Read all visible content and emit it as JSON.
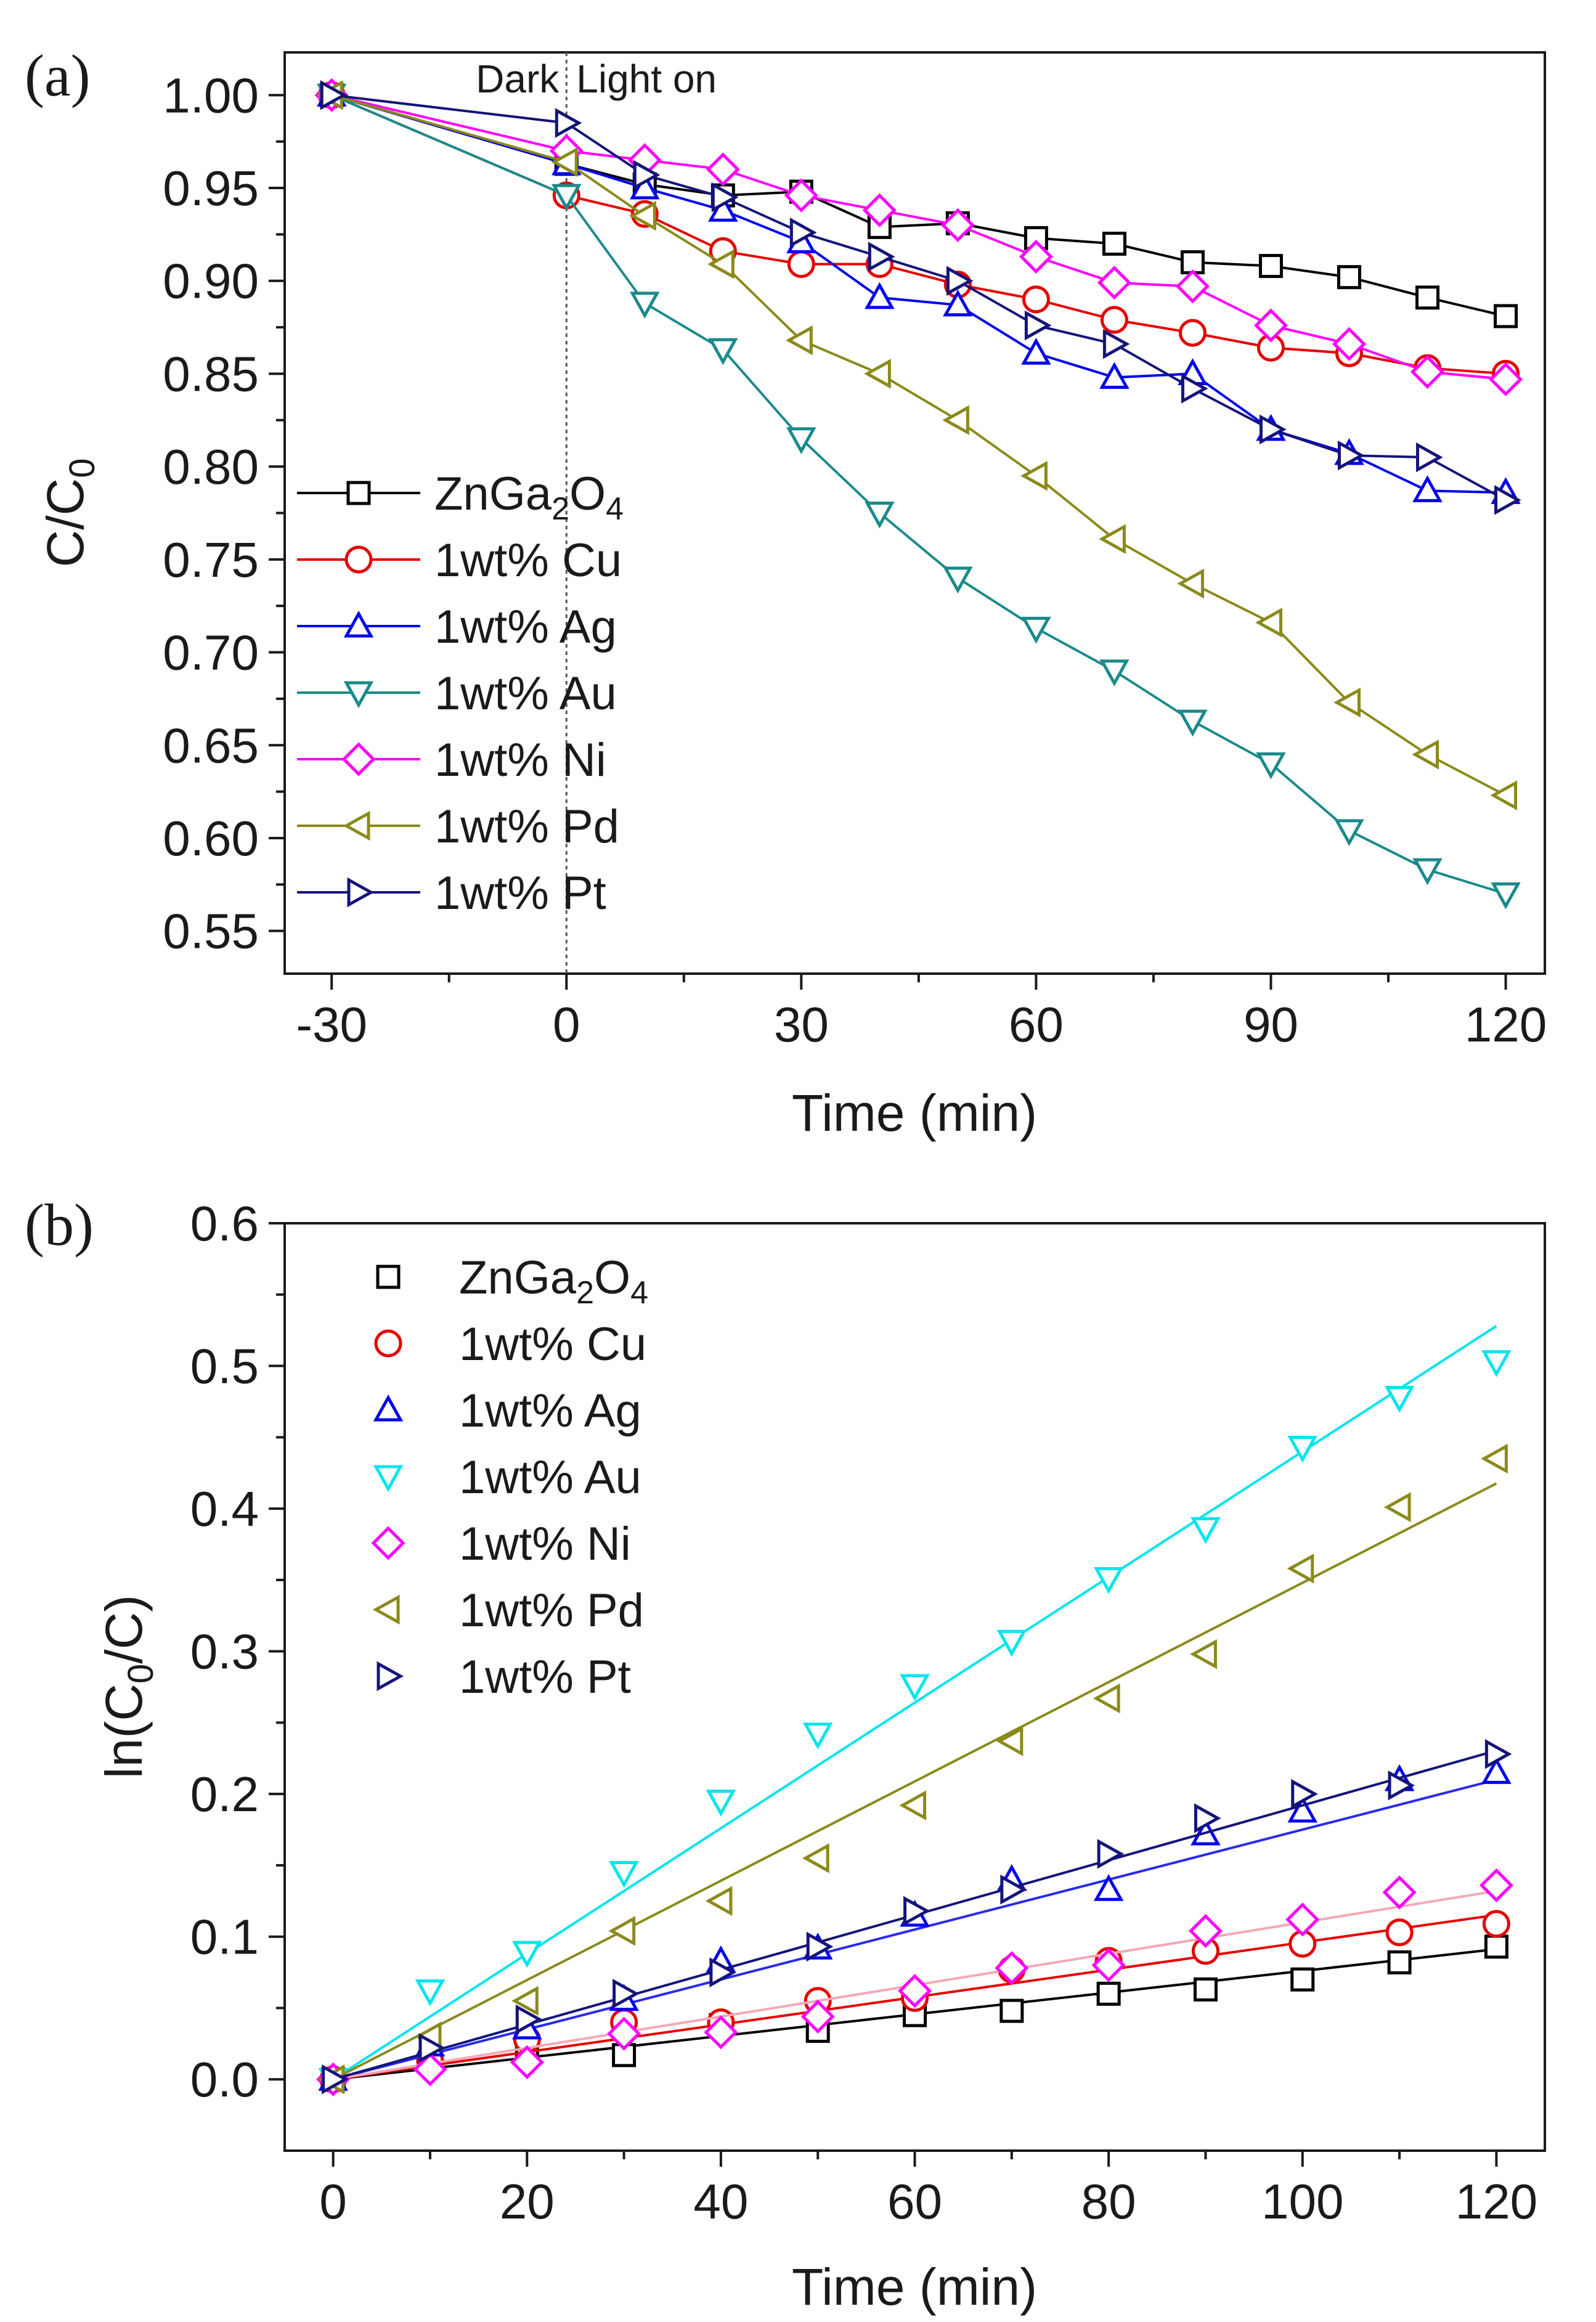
{
  "chart_data": [
    {
      "type": "line",
      "panel_label": "(a)",
      "xlabel": "Time (min)",
      "ylabel": "C/C",
      "ylabel_sub": "0",
      "x_ticks": [
        "-30",
        "0",
        "30",
        "60",
        "90",
        "120"
      ],
      "x_tick_values": [
        -30,
        0,
        30,
        60,
        90,
        120
      ],
      "y_ticks": [
        "0.55",
        "0.60",
        "0.65",
        "0.70",
        "0.75",
        "0.80",
        "0.85",
        "0.90",
        "0.95",
        "1.00"
      ],
      "y_tick_values": [
        0.55,
        0.6,
        0.65,
        0.7,
        0.75,
        0.8,
        0.85,
        0.9,
        0.95,
        1.0
      ],
      "xlim": [
        -36,
        125
      ],
      "ylim": [
        0.527,
        1.023
      ],
      "annotations": {
        "dark": "Dark",
        "light": "Light on"
      },
      "legend_position": "center-left",
      "x": [
        -30,
        0,
        10,
        20,
        30,
        40,
        50,
        60,
        70,
        80,
        90,
        100,
        110,
        120
      ],
      "series": [
        {
          "name": "ZnGa",
          "sub1": "2",
          "mid": "O",
          "sub2": "4",
          "color": "#000000",
          "marker": "square",
          "values": [
            1.0,
            0.963,
            0.952,
            0.946,
            0.948,
            0.929,
            0.931,
            0.923,
            0.92,
            0.91,
            0.908,
            0.902,
            0.891,
            0.881
          ]
        },
        {
          "name": "1wt% Cu",
          "color": "#e60000",
          "marker": "circle",
          "values": [
            1.0,
            0.946,
            0.936,
            0.916,
            0.909,
            0.909,
            0.898,
            0.89,
            0.879,
            0.872,
            0.864,
            0.861,
            0.853,
            0.85
          ]
        },
        {
          "name": "1wt% Ag",
          "color": "#0000ee",
          "marker": "triangle-up",
          "values": [
            1.0,
            0.963,
            0.95,
            0.938,
            0.921,
            0.891,
            0.887,
            0.861,
            0.848,
            0.85,
            0.82,
            0.807,
            0.787,
            0.786
          ]
        },
        {
          "name": "1wt% Au",
          "color": "#1a8a8a",
          "marker": "triangle-down",
          "values": [
            1.0,
            0.946,
            0.888,
            0.863,
            0.815,
            0.775,
            0.74,
            0.713,
            0.69,
            0.663,
            0.64,
            0.604,
            0.583,
            0.57
          ]
        },
        {
          "name": "1wt% Ni",
          "color": "#ff00ff",
          "marker": "diamond",
          "values": [
            1.0,
            0.97,
            0.965,
            0.96,
            0.946,
            0.938,
            0.93,
            0.913,
            0.899,
            0.897,
            0.876,
            0.866,
            0.851,
            0.847
          ]
        },
        {
          "name": "1wt% Pd",
          "color": "#8a8a1a",
          "marker": "triangle-left",
          "values": [
            1.0,
            0.964,
            0.935,
            0.909,
            0.868,
            0.85,
            0.825,
            0.795,
            0.761,
            0.737,
            0.716,
            0.673,
            0.645,
            0.623
          ]
        },
        {
          "name": "1wt% Pt",
          "color": "#14147a",
          "marker": "triangle-right",
          "values": [
            1.0,
            0.985,
            0.957,
            0.945,
            0.926,
            0.913,
            0.9,
            0.876,
            0.866,
            0.842,
            0.82,
            0.806,
            0.805,
            0.782
          ]
        }
      ]
    },
    {
      "type": "scatter",
      "panel_label": "(b)",
      "xlabel": "Time (min)",
      "ylabel_pre": "ln(C",
      "ylabel_sub": "0",
      "ylabel_post": "/C)",
      "x_ticks": [
        "0",
        "20",
        "40",
        "60",
        "80",
        "100",
        "120"
      ],
      "x_tick_values": [
        0,
        20,
        40,
        60,
        80,
        100,
        120
      ],
      "y_ticks": [
        "0.0",
        "0.1",
        "0.2",
        "0.3",
        "0.4",
        "0.5",
        "0.6"
      ],
      "y_tick_values": [
        0.0,
        0.1,
        0.2,
        0.3,
        0.4,
        0.5,
        0.6
      ],
      "xlim": [
        -5,
        125
      ],
      "ylim": [
        -0.05,
        0.6
      ],
      "legend_position": "top-left",
      "x": [
        0,
        10,
        20,
        30,
        40,
        50,
        60,
        70,
        80,
        90,
        100,
        110,
        120
      ],
      "series": [
        {
          "name": "ZnGa",
          "sub1": "2",
          "mid": "O",
          "sub2": "4",
          "color": "#000000",
          "fit_color": "#000000",
          "marker": "square",
          "slope": 0.00076,
          "values": [
            0.0,
            0.012,
            0.02,
            0.017,
            0.038,
            0.034,
            0.045,
            0.048,
            0.06,
            0.063,
            0.07,
            0.082,
            0.093
          ]
        },
        {
          "name": "1wt% Cu",
          "color": "#e60000",
          "fit_color": "#e60000",
          "marker": "circle",
          "slope": 0.00096,
          "values": [
            0.0,
            0.013,
            0.028,
            0.04,
            0.04,
            0.055,
            0.057,
            0.077,
            0.083,
            0.09,
            0.095,
            0.103,
            0.109
          ]
        },
        {
          "name": "1wt% Ag",
          "color": "#0000ee",
          "fit_color": "#2a2aee",
          "marker": "triangle-up",
          "slope": 0.00175,
          "values": [
            0.0,
            0.024,
            0.036,
            0.056,
            0.083,
            0.092,
            0.115,
            0.14,
            0.133,
            0.172,
            0.188,
            0.21,
            0.215
          ]
        },
        {
          "name": "1wt% Au",
          "color": "#00e5ee",
          "fit_color": "#00e5ee",
          "marker": "triangle-down",
          "slope": 0.0044,
          "values": [
            0.0,
            0.062,
            0.089,
            0.145,
            0.195,
            0.242,
            0.276,
            0.307,
            0.351,
            0.386,
            0.443,
            0.478,
            0.503
          ]
        },
        {
          "name": "1wt% Ni",
          "color": "#ff00ff",
          "fit_color": "#f4a8b8",
          "marker": "diamond",
          "slope": 0.0011,
          "values": [
            0.0,
            0.007,
            0.012,
            0.032,
            0.033,
            0.044,
            0.062,
            0.078,
            0.08,
            0.104,
            0.112,
            0.131,
            0.136
          ]
        },
        {
          "name": "1wt% Pd",
          "color": "#8a8a1a",
          "fit_color": "#8a8a1a",
          "marker": "triangle-left",
          "slope": 0.00348,
          "values": [
            0.0,
            0.03,
            0.055,
            0.104,
            0.125,
            0.155,
            0.192,
            0.237,
            0.267,
            0.298,
            0.358,
            0.401,
            0.435
          ]
        },
        {
          "name": "1wt% Pt",
          "color": "#14147a",
          "fit_color": "#14147a",
          "marker": "triangle-right",
          "slope": 0.00192,
          "values": [
            0.0,
            0.022,
            0.042,
            0.06,
            0.075,
            0.093,
            0.118,
            0.133,
            0.158,
            0.183,
            0.2,
            0.206,
            0.228
          ]
        }
      ]
    }
  ]
}
